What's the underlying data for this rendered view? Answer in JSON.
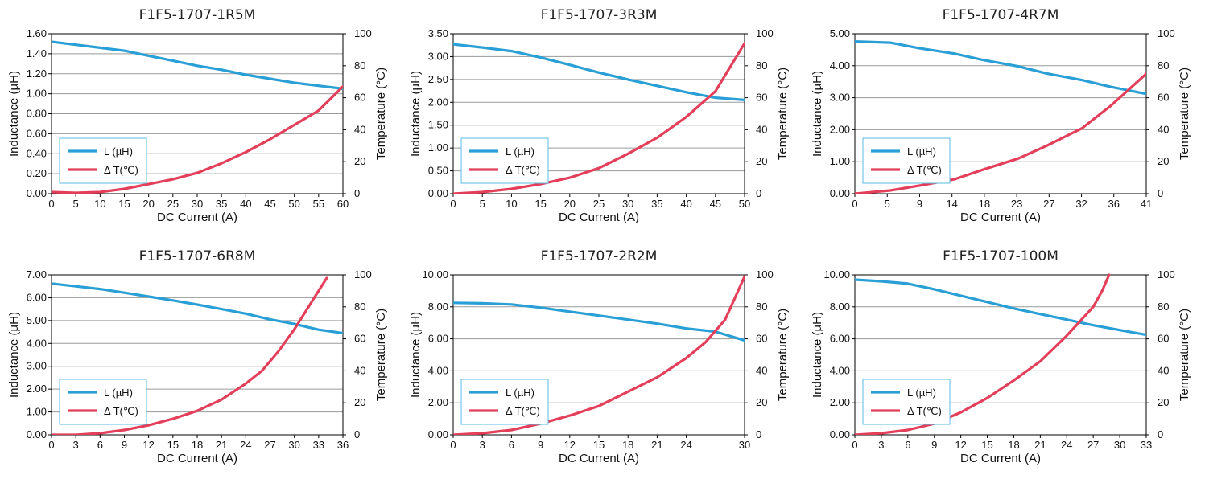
{
  "colors": {
    "inductance": "#2a9fd6",
    "temperature": "#e33f5a",
    "grid": "#9a9a9a",
    "axis": "#000000",
    "legend_border": "#5bbbe0"
  },
  "chart_data": [
    {
      "type": "line",
      "title": "F1F5-1707-1R5M",
      "xlabel": "DC Current (A)",
      "ylabel": "Inductance (µH)",
      "y2label": "Temperature (°C)",
      "xlim": [
        0,
        60
      ],
      "ylim": [
        0,
        1.6
      ],
      "y2lim": [
        0,
        100
      ],
      "x_ticks": [
        "0",
        "5",
        "10",
        "15",
        "20",
        "25",
        "30",
        "35",
        "40",
        "45",
        "50",
        "55",
        "60"
      ],
      "x_tick_values": [
        0,
        5,
        10,
        15,
        20,
        25,
        30,
        35,
        40,
        45,
        50,
        55,
        60
      ],
      "y_ticks": [
        "0.00",
        "0.20",
        "0.40",
        "0.60",
        "0.80",
        "1.00",
        "1.20",
        "1.40",
        "1.60"
      ],
      "y2_ticks": [
        "0",
        "20",
        "40",
        "60",
        "80",
        "100"
      ],
      "legend": [
        "L (µH)",
        "Δ T(℃)"
      ],
      "legend_position": "lower-left",
      "grid": true,
      "series": [
        {
          "name": "L (µH)",
          "axis": "left",
          "x": [
            0,
            5,
            10,
            15,
            20,
            25,
            30,
            35,
            40,
            45,
            50,
            55,
            60
          ],
          "y": [
            1.52,
            1.49,
            1.46,
            1.43,
            1.38,
            1.33,
            1.28,
            1.24,
            1.19,
            1.15,
            1.11,
            1.08,
            1.05
          ]
        },
        {
          "name": "Δ T(℃)",
          "axis": "right",
          "x": [
            0,
            5,
            10,
            15,
            20,
            25,
            30,
            35,
            40,
            45,
            50,
            55,
            60
          ],
          "y": [
            1,
            0.5,
            1,
            3,
            6,
            9,
            13,
            19,
            26,
            34,
            43,
            52,
            67
          ]
        }
      ]
    },
    {
      "type": "line",
      "title": "F1F5-1707-3R3M",
      "xlabel": "DC Current (A)",
      "ylabel": "Inductance (µH)",
      "y2label": "Temperature (°C)",
      "xlim": [
        0,
        50
      ],
      "ylim": [
        0,
        3.5
      ],
      "y2lim": [
        0,
        100
      ],
      "x_ticks": [
        "0",
        "5",
        "10",
        "15",
        "20",
        "25",
        "30",
        "35",
        "40",
        "45",
        "50"
      ],
      "x_tick_values": [
        0,
        5,
        10,
        15,
        20,
        25,
        30,
        35,
        40,
        45,
        50
      ],
      "y_ticks": [
        "0.00",
        "0.50",
        "1.00",
        "1.50",
        "2.00",
        "2.50",
        "3.00",
        "3.50"
      ],
      "y2_ticks": [
        "0",
        "20",
        "40",
        "60",
        "80",
        "100"
      ],
      "legend": [
        "L (µH)",
        "Δ T(℃)"
      ],
      "legend_position": "lower-left",
      "grid": true,
      "series": [
        {
          "name": "L (µH)",
          "axis": "left",
          "x": [
            0,
            5,
            10,
            15,
            20,
            25,
            30,
            35,
            40,
            45,
            50
          ],
          "y": [
            3.27,
            3.2,
            3.12,
            2.98,
            2.82,
            2.65,
            2.5,
            2.36,
            2.22,
            2.1,
            2.05
          ]
        },
        {
          "name": "Δ T(℃)",
          "axis": "right",
          "x": [
            0,
            5,
            10,
            15,
            20,
            25,
            30,
            35,
            40,
            45,
            50
          ],
          "y": [
            0,
            1,
            3,
            6,
            10,
            16,
            25,
            35,
            48,
            64,
            94
          ]
        }
      ]
    },
    {
      "type": "line",
      "title": "F1F5-1707-4R7M",
      "xlabel": "DC Current (A)",
      "ylabel": "Inductance (µH)",
      "y2label": "Temperature (°C)",
      "xlim": [
        0,
        41
      ],
      "ylim": [
        0,
        5
      ],
      "y2lim": [
        0,
        100
      ],
      "x_ticks": [
        "0",
        "5",
        "9",
        "14",
        "18",
        "23",
        "27",
        "32",
        "36",
        "41"
      ],
      "x_tick_values": [
        0,
        4.56,
        9.11,
        13.67,
        18.22,
        22.78,
        27.33,
        31.89,
        36.44,
        41
      ],
      "y_ticks": [
        "0.00",
        "1.00",
        "2.00",
        "3.00",
        "4.00",
        "5.00"
      ],
      "y2_ticks": [
        "0",
        "20",
        "40",
        "60",
        "80",
        "100"
      ],
      "legend": [
        "L (µH)",
        "Δ T(℃)"
      ],
      "legend_position": "lower-left",
      "grid": true,
      "series": [
        {
          "name": "L (µH)",
          "axis": "left",
          "x": [
            0,
            5,
            9,
            14,
            18,
            23,
            27,
            32,
            36,
            41
          ],
          "y": [
            4.76,
            4.72,
            4.55,
            4.38,
            4.18,
            3.98,
            3.76,
            3.55,
            3.34,
            3.12
          ]
        },
        {
          "name": "Δ T(℃)",
          "axis": "right",
          "x": [
            0,
            5,
            9,
            14,
            18,
            23,
            27,
            32,
            36,
            41
          ],
          "y": [
            0,
            2,
            5,
            9,
            15,
            22,
            30,
            41,
            55,
            75
          ]
        }
      ]
    },
    {
      "type": "line",
      "title": "F1F5-1707-6R8M",
      "xlabel": "DC Current (A)",
      "ylabel": "Inductance (µH)",
      "y2label": "Temperature (°C)",
      "xlim": [
        0,
        36
      ],
      "ylim": [
        0,
        7
      ],
      "y2lim": [
        0,
        100
      ],
      "x_ticks": [
        "0",
        "3",
        "6",
        "9",
        "12",
        "15",
        "18",
        "21",
        "24",
        "27",
        "30",
        "33",
        "36"
      ],
      "x_tick_values": [
        0,
        3,
        6,
        9,
        12,
        15,
        18,
        21,
        24,
        27,
        30,
        33,
        36
      ],
      "y_ticks": [
        "0.00",
        "1.00",
        "2.00",
        "3.00",
        "4.00",
        "5.00",
        "6.00",
        "7.00"
      ],
      "y2_ticks": [
        "0",
        "20",
        "40",
        "60",
        "80",
        "100"
      ],
      "legend": [
        "L (µH)",
        "Δ T(℃)"
      ],
      "legend_position": "lower-left",
      "grid": true,
      "series": [
        {
          "name": "L (µH)",
          "axis": "left",
          "x": [
            0,
            3,
            6,
            9,
            12,
            15,
            18,
            21,
            24,
            27,
            30,
            33,
            36
          ],
          "y": [
            6.62,
            6.5,
            6.38,
            6.22,
            6.05,
            5.88,
            5.7,
            5.5,
            5.3,
            5.05,
            4.85,
            4.6,
            4.45
          ]
        },
        {
          "name": "Δ T(℃)",
          "axis": "right",
          "x": [
            0,
            3,
            6,
            9,
            12,
            15,
            18,
            21,
            24,
            26,
            28,
            30,
            32,
            33,
            34
          ],
          "y": [
            0,
            0,
            1,
            3,
            6,
            10,
            15,
            22,
            32,
            40,
            52,
            66,
            82,
            90,
            98
          ]
        }
      ]
    },
    {
      "type": "line",
      "title": "F1F5-1707-2R2M",
      "xlabel": "DC Current (A)",
      "ylabel": "Inductance (µH)",
      "y2label": "Temperature (°C)",
      "xlim": [
        0,
        30
      ],
      "ylim": [
        0,
        10
      ],
      "y2lim": [
        0,
        100
      ],
      "x_ticks": [
        "0",
        "3",
        "6",
        "9",
        "12",
        "15",
        "18",
        "21",
        "24",
        "30"
      ],
      "x_tick_values": [
        0,
        3,
        6,
        9,
        12,
        15,
        18,
        21,
        24,
        30
      ],
      "y_ticks": [
        "0.00",
        "2.00",
        "4.00",
        "6.00",
        "8.00",
        "10.00"
      ],
      "y2_ticks": [
        "0",
        "20",
        "40",
        "60",
        "80",
        "100"
      ],
      "legend": [
        "L (µH)",
        "Δ T(℃)"
      ],
      "legend_position": "lower-left",
      "grid": true,
      "series": [
        {
          "name": "L (µH)",
          "axis": "left",
          "x": [
            0,
            3,
            6,
            9,
            12,
            15,
            18,
            21,
            24,
            27,
            30
          ],
          "y": [
            8.25,
            8.22,
            8.15,
            7.95,
            7.7,
            7.45,
            7.2,
            6.95,
            6.65,
            6.45,
            5.9
          ]
        },
        {
          "name": "Δ T(℃)",
          "axis": "right",
          "x": [
            0,
            3,
            6,
            9,
            12,
            15,
            18,
            21,
            24,
            26,
            28,
            30
          ],
          "y": [
            0,
            1,
            3,
            7,
            12,
            18,
            27,
            36,
            48,
            58,
            72,
            99
          ]
        }
      ]
    },
    {
      "type": "line",
      "title": "F1F5-1707-100M",
      "xlabel": "DC Current (A)",
      "ylabel": "Inductance (µH)",
      "y2label": "Temperature (°C)",
      "xlim": [
        0,
        33
      ],
      "ylim": [
        0,
        10
      ],
      "y2lim": [
        0,
        100
      ],
      "x_ticks": [
        "0",
        "3",
        "6",
        "9",
        "12",
        "15",
        "18",
        "21",
        "24",
        "27",
        "30",
        "33"
      ],
      "x_tick_values": [
        0,
        3,
        6,
        9,
        12,
        15,
        18,
        21,
        24,
        27,
        30,
        33
      ],
      "y_ticks": [
        "0.00",
        "2.00",
        "4.00",
        "6.00",
        "8.00",
        "10.00"
      ],
      "y2_ticks": [
        "0",
        "20",
        "40",
        "60",
        "80",
        "100"
      ],
      "legend": [
        "L (µH)",
        "Δ T(℃)"
      ],
      "legend_position": "lower-left",
      "grid": true,
      "series": [
        {
          "name": "L (µH)",
          "axis": "left",
          "x": [
            0,
            3,
            6,
            9,
            12,
            15,
            18,
            21,
            24,
            27,
            30,
            33
          ],
          "y": [
            9.7,
            9.6,
            9.45,
            9.1,
            8.7,
            8.3,
            7.9,
            7.55,
            7.2,
            6.85,
            6.55,
            6.25
          ]
        },
        {
          "name": "Δ T(℃)",
          "axis": "right",
          "x": [
            0,
            3,
            6,
            9,
            12,
            15,
            18,
            21,
            24,
            27,
            28,
            28.8
          ],
          "y": [
            0,
            1,
            3,
            7,
            14,
            23,
            34,
            46,
            62,
            80,
            90,
            100
          ]
        }
      ]
    }
  ]
}
